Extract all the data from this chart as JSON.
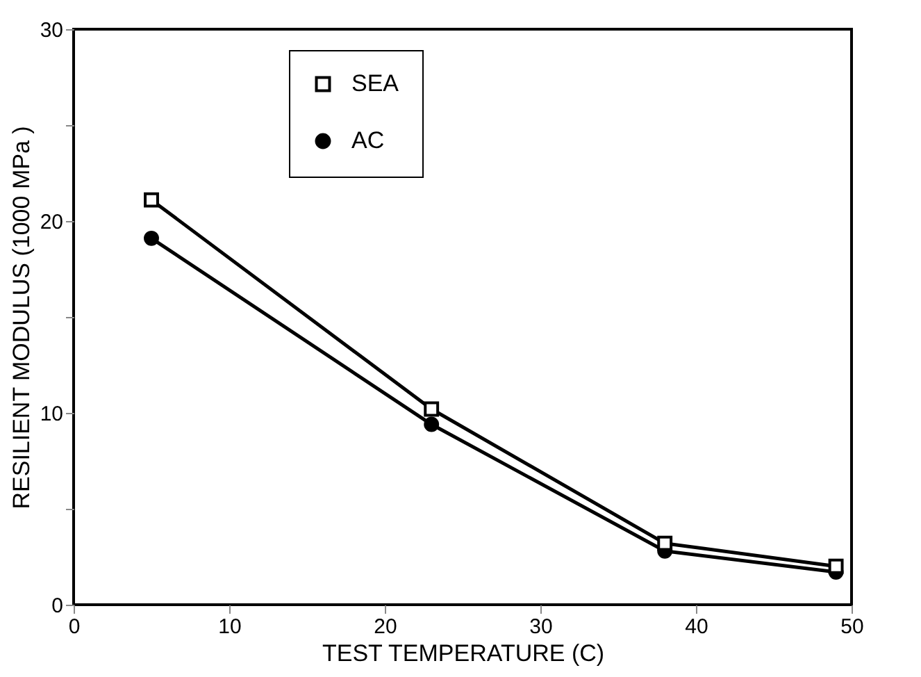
{
  "chart_data": {
    "type": "line",
    "xlabel": "TEST TEMPERATURE (C)",
    "ylabel": "RESILIENT MODULUS (1000 MPa )",
    "x": [
      5,
      23,
      38,
      49
    ],
    "series": [
      {
        "name": "SEA",
        "color": "#000000",
        "marker": "square",
        "values": [
          21.1,
          10.2,
          3.2,
          2.0
        ]
      },
      {
        "name": "AC",
        "color": "#000000",
        "marker": "circle",
        "values": [
          19.1,
          9.4,
          2.8,
          1.7
        ]
      }
    ],
    "xlim": [
      0,
      50
    ],
    "xticks": [
      0,
      10,
      20,
      30,
      40,
      50
    ],
    "ylim": [
      0,
      30
    ],
    "yticks": [
      0,
      {
        "value": 5,
        "label": null
      },
      10,
      {
        "value": 15,
        "label": null
      },
      20,
      {
        "value": 25,
        "label": null
      },
      30
    ],
    "grid": false,
    "legend": "top",
    "line_style": "solid"
  }
}
